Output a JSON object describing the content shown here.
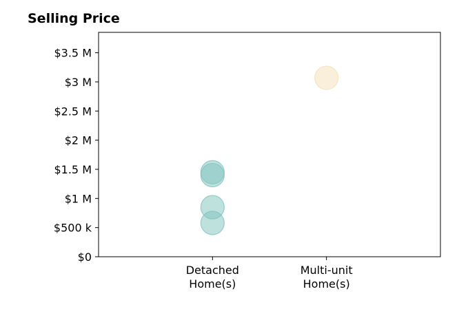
{
  "chart_data": {
    "type": "scatter",
    "title": "Selling Price",
    "xlabel": "",
    "ylabel": "",
    "categories": [
      {
        "line1": "Detached",
        "line2": "Home(s)"
      },
      {
        "line1": "Multi-unit",
        "line2": "Home(s)"
      }
    ],
    "ylim": [
      0,
      3850000
    ],
    "yticks": [
      {
        "value": 0,
        "label": "$0"
      },
      {
        "value": 500000,
        "label": "$500 k"
      },
      {
        "value": 1000000,
        "label": "$1 M"
      },
      {
        "value": 1500000,
        "label": "$1.5 M"
      },
      {
        "value": 2000000,
        "label": "$2 M"
      },
      {
        "value": 2500000,
        "label": "$2.5 M"
      },
      {
        "value": 3000000,
        "label": "$3 M"
      },
      {
        "value": 3500000,
        "label": "$3.5 M"
      }
    ],
    "series": [
      {
        "category_index": 0,
        "color": "#7fc4bd",
        "points": [
          1450000,
          1400000,
          850000,
          580000
        ]
      },
      {
        "category_index": 1,
        "color": "#f5e0b5",
        "points": [
          3070000
        ]
      }
    ],
    "grid": false,
    "legend": "none"
  }
}
